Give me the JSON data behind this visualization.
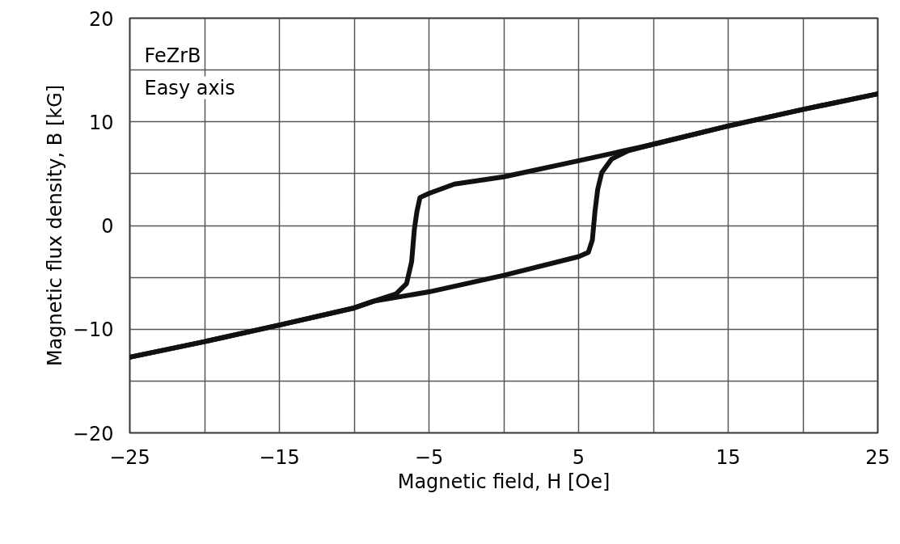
{
  "chart_data": {
    "type": "line",
    "xlabel": "Magnetic field, H [Oe]",
    "ylabel": "Magnetic flux density, B [kG]",
    "annotations": [
      "FeZrB",
      "Easy axis"
    ],
    "series": [
      {
        "color": "#111111",
        "x": [
          -25,
          -20,
          -15,
          -10,
          -8.7,
          -5,
          0,
          5,
          5.65,
          5.92,
          6.1,
          6.28,
          6.55,
          7.2,
          8.3,
          9.6,
          15,
          20,
          25
        ],
        "values": [
          -12.7,
          -11.2,
          -9.6,
          -7.95,
          -7.3,
          -6.4,
          -4.8,
          -3.0,
          -2.6,
          -1.4,
          1.4,
          3.5,
          5.1,
          6.4,
          7.2,
          7.7,
          9.6,
          11.2,
          12.7
        ]
      },
      {
        "color": "#111111",
        "x": [
          -25,
          -20,
          -15,
          -10,
          -8.7,
          -7.2,
          -6.5,
          -6.16,
          -5.98,
          -5.8,
          -5.6,
          -5,
          -3.3,
          0,
          5,
          9.6,
          15,
          20,
          25
        ],
        "values": [
          -12.7,
          -11.2,
          -9.6,
          -7.95,
          -7.3,
          -6.6,
          -5.6,
          -3.5,
          -0.4,
          1.4,
          2.7,
          3.1,
          4.0,
          4.7,
          6.25,
          7.7,
          9.6,
          11.2,
          12.7
        ]
      }
    ],
    "xlim": [
      -25,
      25
    ],
    "ylim": [
      -20,
      20
    ],
    "xticks": [
      {
        "value": -25,
        "label": "−25"
      },
      {
        "value": -20,
        "label": null
      },
      {
        "value": -15,
        "label": "−15"
      },
      {
        "value": -10,
        "label": null
      },
      {
        "value": -5,
        "label": "−5"
      },
      {
        "value": 0,
        "label": null
      },
      5,
      {
        "value": 10,
        "label": null
      },
      15,
      {
        "value": 20,
        "label": null
      },
      25
    ],
    "yticks": [
      {
        "value": -20,
        "label": "−20"
      },
      {
        "value": -15,
        "label": null
      },
      {
        "value": -10,
        "label": "−10"
      },
      {
        "value": -5,
        "label": null
      },
      0,
      {
        "value": 5,
        "label": null
      },
      10,
      {
        "value": 15,
        "label": null
      },
      20
    ],
    "grid": true,
    "marker": "none",
    "line_style": "solid"
  }
}
